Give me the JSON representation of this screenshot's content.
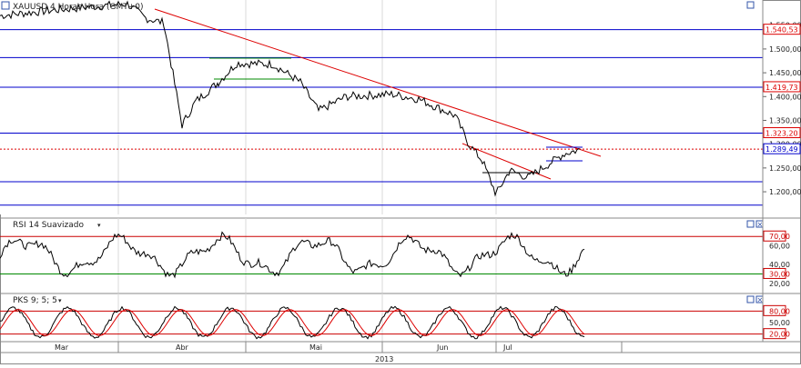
{
  "panels": {
    "price": {
      "title": "XAUUSD 4 Horas Hora (GMT+0)",
      "y_ticks": [
        "1.550,00",
        "1.500,00",
        "1.450,00",
        "1.400,00",
        "1.350,00",
        "1.300,00",
        "1.250,00",
        "1.200,00"
      ],
      "y_range": [
        1160,
        1580
      ],
      "hlines": [
        {
          "value": 1540.53,
          "label": "1.540,53"
        },
        {
          "value": 1482,
          "label": ""
        },
        {
          "value": 1419.73,
          "label": "1.419,73"
        },
        {
          "value": 1323.2,
          "label": "1.323,20"
        },
        {
          "value": 1221,
          "label": ""
        },
        {
          "value": 1172,
          "label": ""
        }
      ],
      "current": {
        "value": 1289.49,
        "label": "1.289,49"
      }
    },
    "rsi": {
      "title": "RSI 14 Suavizado",
      "y_ticks": [
        "70,00",
        "60,00",
        "40,00",
        "30,00",
        "20,00"
      ],
      "levels": [
        {
          "value": 70,
          "label": "70,00"
        },
        {
          "value": 30,
          "label": "30,00"
        }
      ],
      "y_range": [
        12,
        78
      ]
    },
    "pks": {
      "title": "PKS 9; 5; 5",
      "y_ticks": [
        "80,00",
        "50,00",
        "20,00"
      ],
      "levels": [
        {
          "value": 80,
          "label": "80,00"
        },
        {
          "value": 20,
          "label": "20,00"
        }
      ],
      "y_range": [
        5,
        95
      ]
    }
  },
  "x_axis": {
    "months": [
      "Mar",
      "Abr",
      "Mai",
      "Jun",
      "Jul"
    ],
    "year": "2013"
  },
  "colors": {
    "level_line": "#0000cc",
    "trend_line": "#dd0000",
    "overbought": "#cc0000",
    "oversold": "#008800",
    "price_line": "#000000",
    "pks_fast": "#000000",
    "pks_slow": "#dd0000"
  },
  "chart_data": [
    {
      "type": "line",
      "title": "XAUUSD 4 Horas Hora (GMT+0)",
      "x": [
        "Mar",
        "Abr",
        "Mai",
        "Jun",
        "Jul"
      ],
      "series": [
        {
          "name": "",
          "keypoints": [
            [
              0,
              1570
            ],
            [
              40,
              1578
            ],
            [
              90,
              1587
            ],
            [
              140,
              1595
            ],
            [
              160,
              1565
            ],
            [
              180,
              1555
            ],
            [
              200,
              1340
            ],
            [
              215,
              1390
            ],
            [
              240,
              1430
            ],
            [
              260,
              1470
            ],
            [
              300,
              1468
            ],
            [
              330,
              1430
            ],
            [
              350,
              1370
            ],
            [
              380,
              1400
            ],
            [
              430,
              1405
            ],
            [
              460,
              1395
            ],
            [
              500,
              1360
            ],
            [
              515,
              1300
            ],
            [
              530,
              1265
            ],
            [
              545,
              1195
            ],
            [
              560,
              1245
            ],
            [
              580,
              1230
            ],
            [
              600,
              1255
            ],
            [
              620,
              1280
            ],
            [
              640,
              1290
            ]
          ]
        }
      ],
      "ylim": [
        1160,
        1580
      ]
    },
    {
      "type": "line",
      "title": "RSI 14 Suavizado",
      "ylim": [
        12,
        78
      ],
      "levels": [
        70,
        30
      ]
    },
    {
      "type": "line",
      "title": "PKS 9; 5; 5",
      "ylim": [
        5,
        95
      ],
      "levels": [
        80,
        20
      ]
    }
  ]
}
